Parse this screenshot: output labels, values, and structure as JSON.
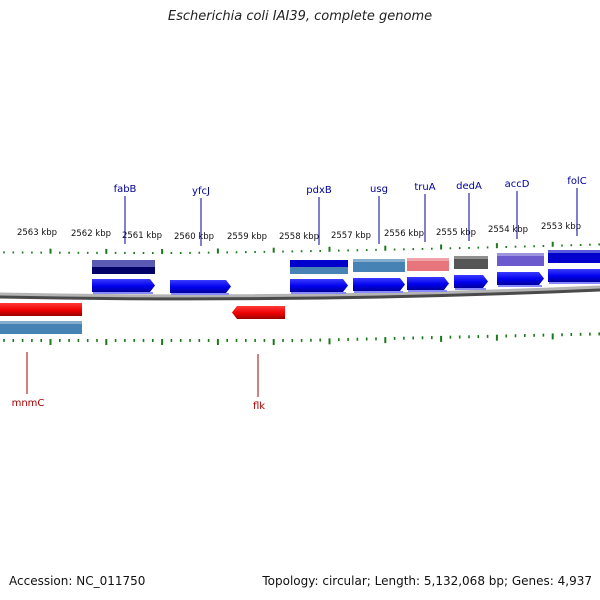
{
  "title": "Escherichia coli IAI39, complete genome",
  "accession_label": "Accession: NC_011750",
  "summary_label": "Topology: circular; Length: 5,132,068 bp; Genes: 4,937",
  "colors": {
    "forward_gene": "#0000ee",
    "reverse_gene": "#ee0000",
    "backbone": "#8a8a8a",
    "tick": "#1a7a1a",
    "forward_label": "#000099",
    "reverse_label": "#aa0000"
  },
  "scale_labels": [
    "2563 kbp",
    "2562 kbp",
    "2561 kbp",
    "2560 kbp",
    "2559 kbp",
    "2558 kbp",
    "2557 kbp",
    "2556 kbp",
    "2555 kbp",
    "2554 kbp",
    "2553 kbp"
  ],
  "forward_genes": [
    {
      "name": "fabB",
      "cog_color": "#5a5ab4",
      "cog_color2": "#000066"
    },
    {
      "name": "yfcJ",
      "cog_color": null
    },
    {
      "name": "pdxB",
      "cog_color": "#0000cc",
      "cog_color2": "#4682b4"
    },
    {
      "name": "usg",
      "cog_color": "#4682b4"
    },
    {
      "name": "truA",
      "cog_color": "#e8747c"
    },
    {
      "name": "dedA",
      "cog_color": "#555555"
    },
    {
      "name": "accD",
      "cog_color": "#6a5acd"
    },
    {
      "name": "folC",
      "cog_color": "#0000cc"
    }
  ],
  "reverse_genes": [
    {
      "name": "mnmC",
      "cog_color": "#4682b4"
    },
    {
      "name": "flk",
      "cog_color": null
    }
  ]
}
